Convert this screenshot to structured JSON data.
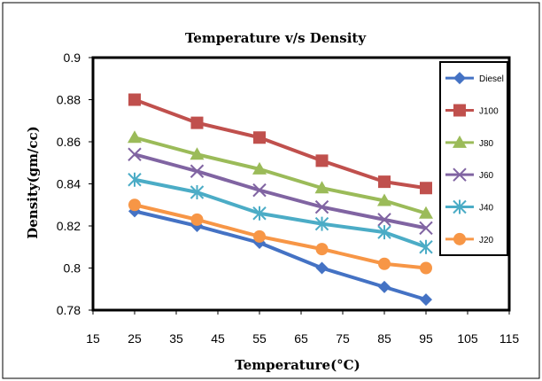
{
  "chart_data": {
    "type": "line",
    "title": "Temperature v/s Density",
    "xlabel": "Temperature(°C)",
    "ylabel": "Density(gm/cc)",
    "xlim": [
      15,
      115
    ],
    "ylim": [
      0.78,
      0.9
    ],
    "xticks": [
      "15",
      "25",
      "35",
      "45",
      "55",
      "65",
      "75",
      "85",
      "95",
      "105",
      "115"
    ],
    "yticks": [
      "0.78",
      "0.8",
      "0.82",
      "0.84",
      "0.86",
      "0.88",
      "0.9"
    ],
    "x": [
      25,
      40,
      55,
      70,
      85,
      95
    ],
    "grid": false,
    "legend_position": "right",
    "series": [
      {
        "name": "Diesel",
        "values": [
          0.827,
          0.82,
          0.812,
          0.8,
          0.791,
          0.785
        ],
        "color": "#4472C4",
        "marker": "diamond"
      },
      {
        "name": "J100",
        "values": [
          0.88,
          0.869,
          0.862,
          0.851,
          0.841,
          0.838
        ],
        "color": "#C0504D",
        "marker": "square"
      },
      {
        "name": "J80",
        "values": [
          0.862,
          0.854,
          0.847,
          0.838,
          0.832,
          0.826
        ],
        "color": "#9BBB59",
        "marker": "triangle"
      },
      {
        "name": "J60",
        "values": [
          0.854,
          0.846,
          0.837,
          0.829,
          0.823,
          0.819
        ],
        "color": "#8064A2",
        "marker": "x"
      },
      {
        "name": "J40",
        "values": [
          0.842,
          0.836,
          0.826,
          0.821,
          0.817,
          0.81
        ],
        "color": "#4BACC6",
        "marker": "asterisk"
      },
      {
        "name": "J20",
        "values": [
          0.83,
          0.823,
          0.815,
          0.809,
          0.802,
          0.8
        ],
        "color": "#F79646",
        "marker": "circle"
      }
    ]
  }
}
